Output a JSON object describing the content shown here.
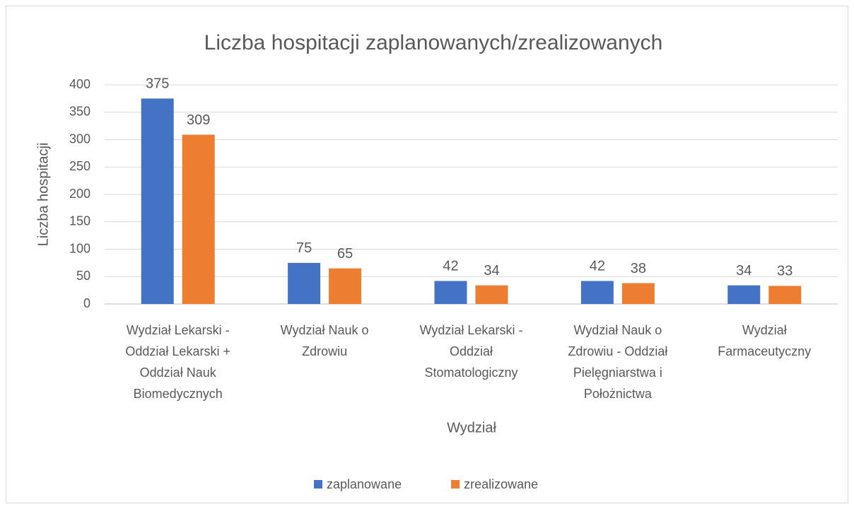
{
  "chart_data": {
    "type": "bar",
    "title": "Liczba hospitacji zaplanowanych/zrealizowanych",
    "xlabel": "Wydział",
    "ylabel": "Liczba hospitacji",
    "categories": [
      "Wydział Lekarski - Oddział Lekarski + Oddział Nauk Biomedycznych",
      "Wydział Nauk o Zdrowiu",
      "Wydział Lekarski - Oddział Stomatologiczny",
      "Wydział Nauk o Zdrowiu - Oddział Pielęgniarstwa i Położnictwa",
      "Wydział Farmaceutyczny"
    ],
    "series": [
      {
        "name": "zaplanowane",
        "color": "#4472c4",
        "values": [
          375,
          75,
          42,
          42,
          34
        ]
      },
      {
        "name": "zrealizowane",
        "color": "#ed7d31",
        "values": [
          309,
          65,
          34,
          38,
          33
        ]
      }
    ],
    "ylim": [
      0,
      400
    ],
    "yticks": [
      0,
      50,
      100,
      150,
      200,
      250,
      300,
      350,
      400
    ],
    "grid": true,
    "legend": "bottom"
  }
}
